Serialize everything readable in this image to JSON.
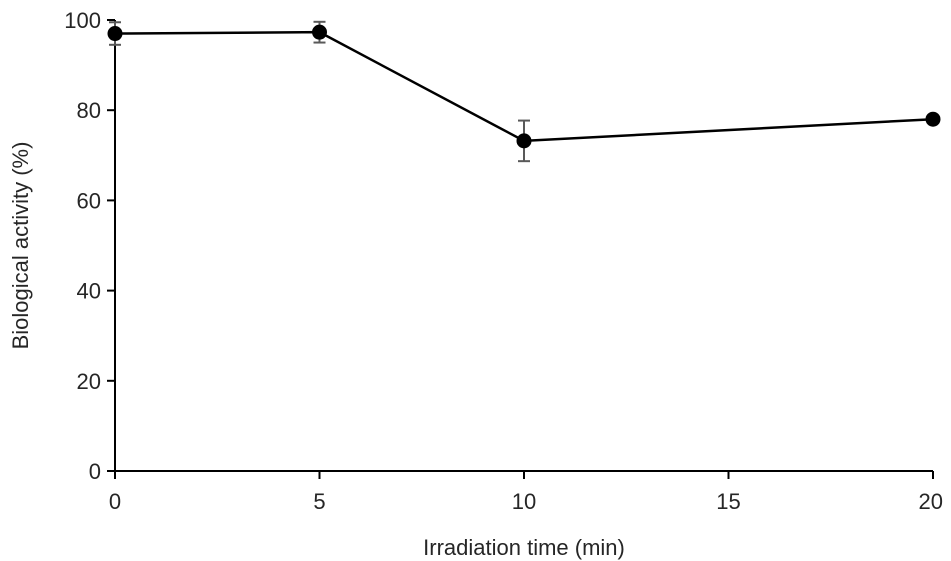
{
  "chart_data": {
    "type": "line",
    "title": "",
    "xlabel": "Irradiation time (min)",
    "ylabel": "Biological activity (%)",
    "x_ticks": [
      "0",
      "5",
      "10",
      "15",
      "20"
    ],
    "y_ticks": [
      "0",
      "20",
      "40",
      "60",
      "80",
      "100"
    ],
    "xlim": [
      0,
      20
    ],
    "ylim": [
      0,
      100
    ],
    "grid": false,
    "legend": "none",
    "series": [
      {
        "x": [
          0,
          5,
          10,
          20
        ],
        "y": [
          97,
          97.3,
          73.2,
          78
        ],
        "error": [
          2.5,
          2.3,
          4.5,
          0
        ],
        "color": "#000000",
        "error_color": "#595959",
        "marker": "circle"
      }
    ]
  }
}
